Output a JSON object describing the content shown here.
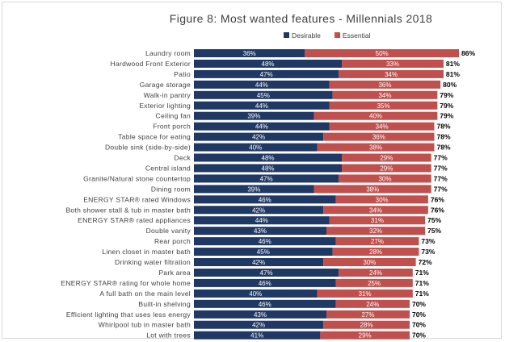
{
  "chart_data": {
    "type": "bar",
    "orientation": "horizontal",
    "stacked": true,
    "title": "Figure 8: Most wanted features - Millennials 2018",
    "xlabel": "",
    "ylabel": "",
    "xlim": [
      0,
      86
    ],
    "grid": false,
    "legend_position": "top",
    "categories": [
      "Laundry room",
      "Hardwood Front Exterior",
      "Patio",
      "Garage storage",
      "Walk-in pantry",
      "Exterior lighting",
      "Ceiling fan",
      "Front porch",
      "Table space for eating",
      "Double sink (side-by-side)",
      "Deck",
      "Central island",
      "Granite/Natural stone countertop",
      "Dining room",
      "ENERGY STAR® rated Windows",
      "Both shower stall & tub in master bath",
      "ENERGY STAR® rated appliances",
      "Double vanity",
      "Rear porch",
      "Linen closet in master bath",
      "Drinking water filtration",
      "Park area",
      "ENERGY STAR® rating for whole home",
      "A full bath on the main level",
      "Built-in shelving",
      "Efficient lighting that uses less energy",
      "Whirlpool tub in master bath",
      "Lot with trees"
    ],
    "series": [
      {
        "name": "Desirable",
        "color": "#1f3864",
        "values": [
          36,
          48,
          47,
          44,
          45,
          44,
          39,
          44,
          42,
          40,
          48,
          48,
          47,
          39,
          46,
          42,
          44,
          43,
          46,
          45,
          42,
          47,
          46,
          40,
          46,
          43,
          42,
          41
        ],
        "labels": [
          "36%",
          "48%",
          "47%",
          "44%",
          "45%",
          "44%",
          "39%",
          "44%",
          "42%",
          "40%",
          "48%",
          "48%",
          "47%",
          "39%",
          "46%",
          "42%",
          "44%",
          "43%",
          "46%",
          "45%",
          "42%",
          "47%",
          "46%",
          "40%",
          "46%",
          "43%",
          "42%",
          "41%"
        ]
      },
      {
        "name": "Essential",
        "color": "#c0504d",
        "values": [
          50,
          33,
          34,
          36,
          34,
          35,
          40,
          34,
          36,
          38,
          29,
          29,
          30,
          38,
          30,
          34,
          31,
          32,
          27,
          28,
          30,
          24,
          25,
          31,
          24,
          27,
          28,
          29
        ],
        "labels": [
          "50%",
          "33%",
          "34%",
          "36%",
          "34%",
          "35%",
          "40%",
          "34%",
          "36%",
          "38%",
          "29%",
          "29%",
          "30%",
          "38%",
          "30%",
          "34%",
          "31%",
          "32%",
          "27%",
          "28%",
          "30%",
          "24%",
          "25%",
          "31%",
          "24%",
          "27%",
          "28%",
          "29%"
        ]
      }
    ],
    "totals": [
      86,
      81,
      81,
      80,
      79,
      79,
      79,
      78,
      78,
      78,
      77,
      77,
      77,
      77,
      76,
      76,
      75,
      75,
      73,
      73,
      72,
      71,
      71,
      71,
      70,
      70,
      70,
      70
    ],
    "total_labels": [
      "86%",
      "81%",
      "81%",
      "80%",
      "79%",
      "79%",
      "79%",
      "78%",
      "78%",
      "78%",
      "77%",
      "77%",
      "77%",
      "77%",
      "76%",
      "76%",
      "75%",
      "75%",
      "73%",
      "73%",
      "72%",
      "71%",
      "71%",
      "71%",
      "70%",
      "70%",
      "70%",
      "70%"
    ]
  }
}
